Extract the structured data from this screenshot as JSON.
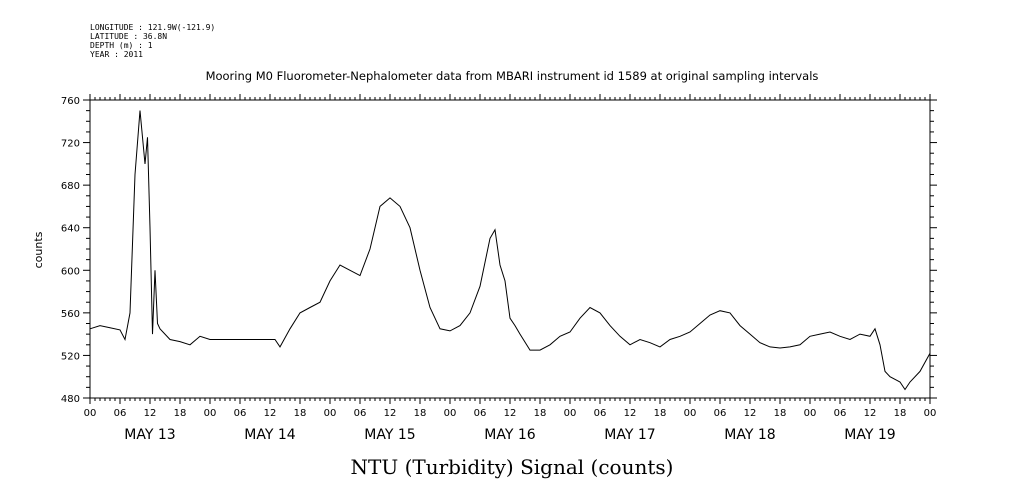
{
  "meta": {
    "longitude": "LONGITUDE : 121.9W(-121.9)",
    "latitude": "LATITUDE : 36.8N",
    "depth": "DEPTH (m) : 1",
    "year": "YEAR : 2011"
  },
  "chart_data": {
    "type": "line",
    "title": "Mooring M0 Fluorometer-Nephalometer data from MBARI instrument id 1589 at original sampling intervals",
    "xlabel": "NTU (Turbidity) Signal (counts)",
    "ylabel": "counts",
    "ylim": [
      480,
      760
    ],
    "yticks": [
      480,
      520,
      560,
      600,
      640,
      680,
      720,
      760
    ],
    "xlim": [
      "2011-05-13 00:00",
      "2011-05-20 00:00"
    ],
    "hour_tick_labels": [
      "00",
      "06",
      "12",
      "18"
    ],
    "day_labels": [
      "MAY 13",
      "MAY 14",
      "MAY 15",
      "MAY 16",
      "MAY 17",
      "MAY 18",
      "MAY 19"
    ],
    "grid": false,
    "series": [
      {
        "x": [
          "2011-05-13 00:00",
          "2011-05-13 02:00",
          "2011-05-13 04:00",
          "2011-05-13 06:00",
          "2011-05-13 07:00",
          "2011-05-13 08:00",
          "2011-05-13 09:00",
          "2011-05-13 09:30",
          "2011-05-13 10:00",
          "2011-05-13 11:00",
          "2011-05-13 11:30",
          "2011-05-13 12:00",
          "2011-05-13 12:30",
          "2011-05-13 13:00",
          "2011-05-13 13:30",
          "2011-05-13 14:00",
          "2011-05-13 16:00",
          "2011-05-13 18:00",
          "2011-05-13 20:00",
          "2011-05-13 22:00",
          "2011-05-14 00:00",
          "2011-05-14 13:00",
          "2011-05-14 14:00",
          "2011-05-14 16:00",
          "2011-05-14 18:00",
          "2011-05-14 20:00",
          "2011-05-14 22:00",
          "2011-05-15 00:00",
          "2011-05-15 02:00",
          "2011-05-15 04:00",
          "2011-05-15 06:00",
          "2011-05-15 08:00",
          "2011-05-15 10:00",
          "2011-05-15 12:00",
          "2011-05-15 14:00",
          "2011-05-15 16:00",
          "2011-05-15 18:00",
          "2011-05-15 20:00",
          "2011-05-15 22:00",
          "2011-05-16 00:00",
          "2011-05-16 02:00",
          "2011-05-16 04:00",
          "2011-05-16 06:00",
          "2011-05-16 08:00",
          "2011-05-16 09:00",
          "2011-05-16 10:00",
          "2011-05-16 11:00",
          "2011-05-16 12:00",
          "2011-05-16 13:00",
          "2011-05-16 14:00",
          "2011-05-16 16:00",
          "2011-05-16 18:00",
          "2011-05-16 20:00",
          "2011-05-16 22:00",
          "2011-05-17 00:00",
          "2011-05-17 02:00",
          "2011-05-17 04:00",
          "2011-05-17 06:00",
          "2011-05-17 08:00",
          "2011-05-17 10:00",
          "2011-05-17 12:00",
          "2011-05-17 14:00",
          "2011-05-17 16:00",
          "2011-05-17 18:00",
          "2011-05-17 20:00",
          "2011-05-17 22:00",
          "2011-05-18 00:00",
          "2011-05-18 02:00",
          "2011-05-18 04:00",
          "2011-05-18 06:00",
          "2011-05-18 08:00",
          "2011-05-18 10:00",
          "2011-05-18 12:00",
          "2011-05-18 14:00",
          "2011-05-18 16:00",
          "2011-05-18 18:00",
          "2011-05-18 20:00",
          "2011-05-18 22:00",
          "2011-05-19 00:00",
          "2011-05-19 02:00",
          "2011-05-19 04:00",
          "2011-05-19 06:00",
          "2011-05-19 08:00",
          "2011-05-19 10:00",
          "2011-05-19 12:00",
          "2011-05-19 13:00",
          "2011-05-19 14:00",
          "2011-05-19 15:00",
          "2011-05-19 16:00",
          "2011-05-19 18:00",
          "2011-05-19 19:00",
          "2011-05-19 20:00",
          "2011-05-19 22:00",
          "2011-05-20 00:00"
        ],
        "y": [
          545,
          548,
          546,
          544,
          535,
          560,
          690,
          720,
          750,
          700,
          725,
          640,
          540,
          600,
          550,
          545,
          535,
          533,
          530,
          538,
          535,
          535,
          528,
          545,
          560,
          565,
          570,
          590,
          605,
          600,
          595,
          620,
          660,
          668,
          660,
          640,
          600,
          565,
          545,
          543,
          548,
          560,
          585,
          630,
          638,
          605,
          590,
          555,
          548,
          540,
          525,
          525,
          530,
          538,
          542,
          555,
          565,
          560,
          548,
          538,
          530,
          535,
          532,
          528,
          535,
          538,
          542,
          550,
          558,
          562,
          560,
          548,
          540,
          532,
          528,
          527,
          528,
          530,
          538,
          540,
          542,
          538,
          535,
          540,
          538,
          545,
          530,
          505,
          500,
          495,
          488,
          495,
          505,
          522
        ]
      }
    ]
  }
}
